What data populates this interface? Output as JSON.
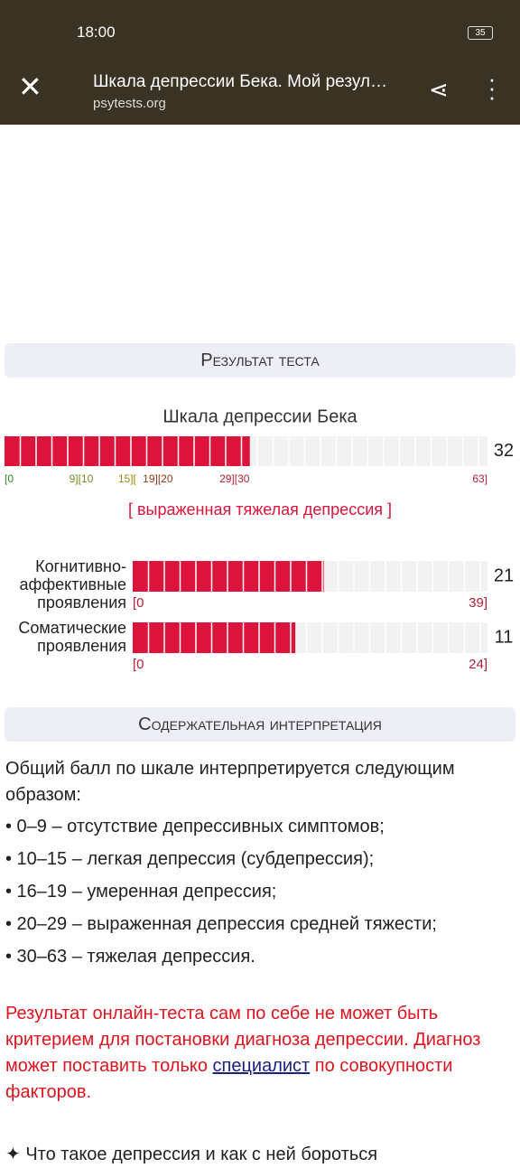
{
  "status_bar": {
    "time": "18:00",
    "battery": "35"
  },
  "browser": {
    "title": "Шкала депрессии Бека. Мой резул…",
    "url": "psytests.org"
  },
  "result": {
    "heading": "Результат теста",
    "scale_title": "Шкала депрессии Бека",
    "score": 32,
    "color": "#dc143c",
    "ticks": [
      {
        "value": 0,
        "label": "[0",
        "color": "#2e8b22"
      },
      {
        "value": 10,
        "label": "9][10",
        "color": "#6b8e23"
      },
      {
        "value": 16,
        "label": "15][",
        "color": "#9a8a10"
      },
      {
        "value": 20,
        "label": "19][20",
        "color": "#8b3a1a"
      },
      {
        "value": 30,
        "label": "29][30",
        "color": "#b0203a"
      },
      {
        "value": 63,
        "label": "63]",
        "color": "#b0203a"
      }
    ],
    "verdict": "[ выраженная тяжелая депрессия ]",
    "subscales": [
      {
        "name": "Когнитивно-аффективные проявления",
        "score": 21,
        "ticks": [
          {
            "value": 0,
            "label": "[0"
          },
          {
            "value": 39,
            "label": "39]"
          }
        ]
      },
      {
        "name": "Соматические проявления",
        "score": 11,
        "ticks": [
          {
            "value": 0,
            "label": "[0"
          },
          {
            "value": 24,
            "label": "24]"
          }
        ]
      }
    ]
  },
  "interpretation": {
    "heading": "Содержательная интерпретация",
    "intro": "Общий балл по шкале интерпретируется следующим образом:",
    "items": [
      "• 0–9 – отсутствие депрессивных симптомов;",
      "• 10–15 – легкая депрессия (субдепрессия);",
      "• 16–19 – умеренная депрессия;",
      "• 20–29 – выраженная депрессия средней тяжести;",
      "• 30–63 – тяжелая депрессия."
    ]
  },
  "disclaimer": {
    "before": "Результат онлайн-теста сам по себе не может быть критерием для постановки диагноза депрессии. Диагноз может поставить только ",
    "link": "специалист",
    "after": " по совокупности факторов."
  },
  "next_link": "✦ Что такое депрессия и как с ней бороться"
}
